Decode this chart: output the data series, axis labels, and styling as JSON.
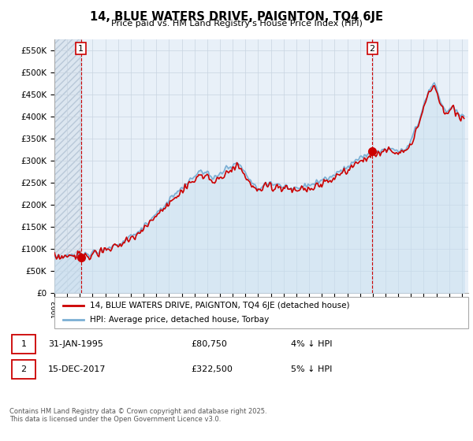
{
  "title": "14, BLUE WATERS DRIVE, PAIGNTON, TQ4 6JE",
  "subtitle": "Price paid vs. HM Land Registry's House Price Index (HPI)",
  "xlim_start": 1993.0,
  "xlim_end": 2025.5,
  "ylim_min": 0,
  "ylim_max": 575000,
  "yticks": [
    0,
    50000,
    100000,
    150000,
    200000,
    250000,
    300000,
    350000,
    400000,
    450000,
    500000,
    550000
  ],
  "ytick_labels": [
    "£0",
    "£50K",
    "£100K",
    "£150K",
    "£200K",
    "£250K",
    "£300K",
    "£350K",
    "£400K",
    "£450K",
    "£500K",
    "£550K"
  ],
  "hpi_color": "#7bafd4",
  "hpi_fill_color": "#c8dff0",
  "price_color": "#cc0000",
  "vline1_x": 1995.083,
  "vline2_x": 2017.958,
  "marker1_x": 1995.083,
  "marker1_y": 80750,
  "marker2_x": 2017.958,
  "marker2_y": 322500,
  "annotation1": "1",
  "annotation2": "2",
  "legend_price_label": "14, BLUE WATERS DRIVE, PAIGNTON, TQ4 6JE (detached house)",
  "legend_hpi_label": "HPI: Average price, detached house, Torbay",
  "table_row1": [
    "1",
    "31-JAN-1995",
    "£80,750",
    "4% ↓ HPI"
  ],
  "table_row2": [
    "2",
    "15-DEC-2017",
    "£322,500",
    "5% ↓ HPI"
  ],
  "footnote": "Contains HM Land Registry data © Crown copyright and database right 2025.\nThis data is licensed under the Open Government Licence v3.0.",
  "hatch_region_end": 1995.083,
  "bg_color": "#e8f0f8",
  "hatch_color": "#c0ccd8",
  "grid_color": "#c8d4e0"
}
